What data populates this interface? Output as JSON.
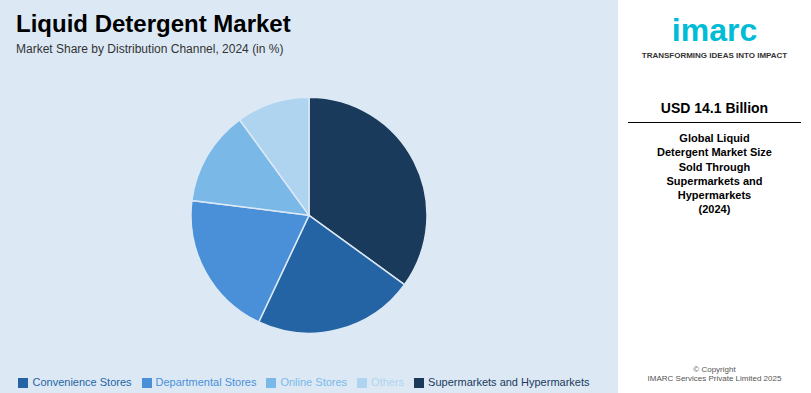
{
  "chart_data": {
    "type": "pie",
    "title": "Liquid Detergent Market",
    "subtitle": "Market Share by Distribution Channel, 2024 (in %)",
    "categories": [
      "Supermarkets and Hypermarkets",
      "Convenience Stores",
      "Departmental Stores",
      "Online Stores",
      "Others"
    ],
    "values": [
      35,
      22,
      20,
      13,
      10
    ],
    "colors": [
      "#1a3a5c",
      "#2464a4",
      "#4a90d9",
      "#7ab8e8",
      "#aed4f0"
    ],
    "legend": "bottom",
    "annotations": [
      "imarc",
      "TRANSFORMING IDEAS INTO IMPACT",
      "USD 14.1 Billion",
      "Global Liquid\nDetergent Market Size\nSold Through\nSupermarkets and\nHypermarkets\n(2024)",
      "© Copyright\nIMARC Services Private Limited 2025"
    ]
  }
}
